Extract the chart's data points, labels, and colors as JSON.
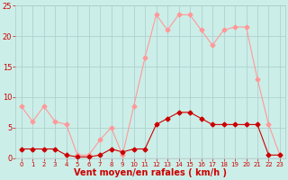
{
  "hours": [
    0,
    1,
    2,
    3,
    4,
    5,
    6,
    7,
    8,
    9,
    10,
    11,
    12,
    13,
    14,
    15,
    16,
    17,
    18,
    19,
    20,
    21,
    22,
    23
  ],
  "wind_avg": [
    1.5,
    1.5,
    1.5,
    1.5,
    0.5,
    0.2,
    0.2,
    0.5,
    1.5,
    1.0,
    1.5,
    1.5,
    5.5,
    6.5,
    7.5,
    7.5,
    6.5,
    5.5,
    5.5,
    5.5,
    5.5,
    5.5,
    0.5,
    0.5
  ],
  "wind_gust": [
    8.5,
    6.0,
    8.5,
    6.0,
    5.5,
    0.5,
    0.5,
    3.0,
    5.0,
    0.5,
    8.5,
    16.5,
    23.5,
    21.0,
    23.5,
    23.5,
    21.0,
    18.5,
    21.0,
    21.5,
    21.5,
    13.0,
    5.5,
    0.5
  ],
  "color_avg": "#cc0000",
  "color_gust": "#ff9999",
  "bg_color": "#cceee8",
  "grid_color": "#aacccc",
  "xlabel": "Vent moyen/en rafales ( km/h )",
  "ylim": [
    0,
    25
  ],
  "xlim": [
    -0.5,
    23.5
  ],
  "yticks": [
    0,
    5,
    10,
    15,
    20,
    25
  ],
  "xticks": [
    0,
    1,
    2,
    3,
    4,
    5,
    6,
    7,
    8,
    9,
    10,
    11,
    12,
    13,
    14,
    15,
    16,
    17,
    18,
    19,
    20,
    21,
    22,
    23
  ],
  "xlabel_fontsize": 7,
  "tick_fontsize": 5
}
